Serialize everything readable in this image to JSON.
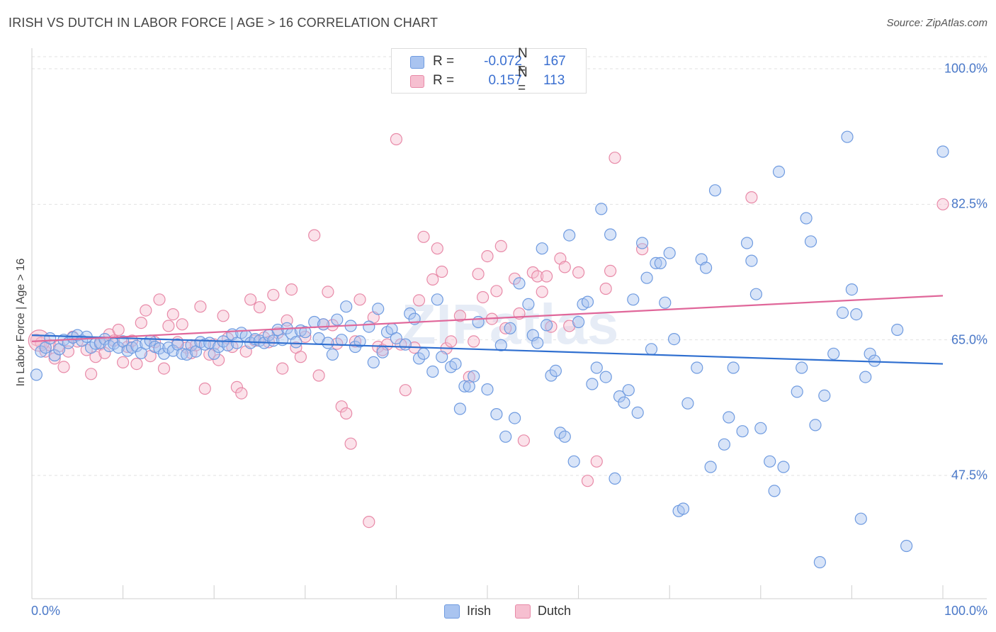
{
  "header": {
    "title": "IRISH VS DUTCH IN LABOR FORCE | AGE > 16 CORRELATION CHART",
    "source": "Source: ZipAtlas.com"
  },
  "watermark": "ZIPatlas",
  "stats": {
    "rows": [
      {
        "label": "R =",
        "r": "-0.072",
        "n_label": "N =",
        "n": "167",
        "color": "#a9c4f0",
        "border": "#6f9be0"
      },
      {
        "label": "R =",
        "r": "0.157",
        "n_label": "N =",
        "n": "113",
        "color": "#f6bfd0",
        "border": "#e88aa8"
      }
    ]
  },
  "legend": {
    "irish": "Irish",
    "dutch": "Dutch"
  },
  "colors": {
    "irish_fill": "#a9c4f0",
    "irish_stroke": "#6f9be0",
    "irish_line": "#2f6fd0",
    "dutch_fill": "#f6bfd0",
    "dutch_stroke": "#e88aa8",
    "dutch_line": "#e0679a",
    "tick_text": "#4a78c8"
  },
  "chart_data": {
    "type": "scatter",
    "title": "IRISH VS DUTCH IN LABOR FORCE | AGE > 16 CORRELATION CHART",
    "xlabel": "",
    "ylabel": "In Labor Force | Age > 16",
    "xlim": [
      0,
      100
    ],
    "ylim": [
      29.5,
      100
    ],
    "x_tick_labels": [
      "0.0%",
      "100.0%"
    ],
    "y_ticks": [
      47.5,
      65.0,
      82.5,
      100.0
    ],
    "y_tick_labels": [
      "47.5%",
      "65.0%",
      "82.5%",
      "100.0%"
    ],
    "grid": true,
    "legend_position": "bottom-center",
    "series": [
      {
        "name": "Irish",
        "r": -0.072,
        "n": 167,
        "trend": {
          "x": [
            0,
            100
          ],
          "y": [
            65.6,
            61.9
          ]
        },
        "points": [
          [
            0.5,
            60.5
          ],
          [
            1,
            63.5
          ],
          [
            1.5,
            64
          ],
          [
            2,
            65.2
          ],
          [
            2.5,
            63
          ],
          [
            3,
            63.8
          ],
          [
            3.5,
            65
          ],
          [
            4,
            64.6
          ],
          [
            4.5,
            65.3
          ],
          [
            5,
            65.6
          ],
          [
            5.5,
            64.9
          ],
          [
            6,
            65.4
          ],
          [
            6.5,
            64
          ],
          [
            7,
            64.5
          ],
          [
            7.5,
            64.6
          ],
          [
            8,
            65.1
          ],
          [
            8.5,
            64.2
          ],
          [
            9,
            64.5
          ],
          [
            9.5,
            64
          ],
          [
            10,
            64.8
          ],
          [
            10.5,
            63.6
          ],
          [
            11,
            64
          ],
          [
            11.5,
            64.2
          ],
          [
            12,
            63.3
          ],
          [
            12.5,
            64.5
          ],
          [
            13,
            64.9
          ],
          [
            13.5,
            64.1
          ],
          [
            14,
            63.9
          ],
          [
            14.5,
            63.2
          ],
          [
            15,
            64
          ],
          [
            15.5,
            63.6
          ],
          [
            16,
            64.4
          ],
          [
            16.5,
            63.2
          ],
          [
            17,
            63.1
          ],
          [
            17.5,
            64.3
          ],
          [
            18,
            63.5
          ],
          [
            18.5,
            64.7
          ],
          [
            19,
            64.4
          ],
          [
            19.5,
            64.6
          ],
          [
            20,
            63.2
          ],
          [
            20.5,
            64.1
          ],
          [
            21,
            64.8
          ],
          [
            21.5,
            64.3
          ],
          [
            22,
            65.7
          ],
          [
            22.5,
            64.6
          ],
          [
            23,
            65.9
          ],
          [
            23.5,
            65.5
          ],
          [
            24,
            64.6
          ],
          [
            24.5,
            65.1
          ],
          [
            25,
            64.9
          ],
          [
            25.5,
            64.6
          ],
          [
            26,
            65.6
          ],
          [
            26.5,
            64.9
          ],
          [
            27,
            66.3
          ],
          [
            27.5,
            65
          ],
          [
            28,
            66.5
          ],
          [
            28.5,
            65.8
          ],
          [
            29,
            64.7
          ],
          [
            29.5,
            66.2
          ],
          [
            30,
            66
          ],
          [
            31,
            67.3
          ],
          [
            31.5,
            65.2
          ],
          [
            32,
            67
          ],
          [
            32.5,
            64.6
          ],
          [
            33,
            63.1
          ],
          [
            33.5,
            67.6
          ],
          [
            34,
            65
          ],
          [
            34.5,
            69.3
          ],
          [
            35,
            66.8
          ],
          [
            35.5,
            64.1
          ],
          [
            36,
            64.8
          ],
          [
            37,
            66.7
          ],
          [
            37.5,
            62.1
          ],
          [
            38,
            69
          ],
          [
            38.5,
            63.4
          ],
          [
            39,
            66
          ],
          [
            39.5,
            66.4
          ],
          [
            40,
            65.2
          ],
          [
            41,
            64.4
          ],
          [
            41.5,
            68.4
          ],
          [
            42,
            67.7
          ],
          [
            42.5,
            62.6
          ],
          [
            43,
            63.2
          ],
          [
            44,
            60.9
          ],
          [
            44.5,
            70.2
          ],
          [
            45,
            62.8
          ],
          [
            46,
            61.5
          ],
          [
            46.5,
            61.9
          ],
          [
            47,
            56.1
          ],
          [
            47.5,
            59
          ],
          [
            48,
            59
          ],
          [
            48.5,
            60.3
          ],
          [
            49,
            67.3
          ],
          [
            50,
            58.6
          ],
          [
            51,
            55.4
          ],
          [
            51.5,
            64.3
          ],
          [
            52,
            52.5
          ],
          [
            52.5,
            66.5
          ],
          [
            53,
            54.9
          ],
          [
            53.5,
            72.3
          ],
          [
            54.5,
            69.6
          ],
          [
            55,
            65.6
          ],
          [
            55.5,
            64.6
          ],
          [
            56,
            76.8
          ],
          [
            56.5,
            66.9
          ],
          [
            57,
            60.4
          ],
          [
            57.5,
            61
          ],
          [
            58,
            53
          ],
          [
            58.5,
            52.5
          ],
          [
            59,
            78.5
          ],
          [
            59.5,
            49.3
          ],
          [
            60,
            67.3
          ],
          [
            60.5,
            69.6
          ],
          [
            61,
            69.9
          ],
          [
            61.5,
            59.3
          ],
          [
            62,
            61.4
          ],
          [
            62.5,
            81.9
          ],
          [
            63,
            60.2
          ],
          [
            63.5,
            78.6
          ],
          [
            64,
            47.1
          ],
          [
            64.5,
            57.7
          ],
          [
            65,
            56.9
          ],
          [
            65.5,
            58.5
          ],
          [
            66,
            70.2
          ],
          [
            66.5,
            55.6
          ],
          [
            67,
            77.5
          ],
          [
            67.5,
            73
          ],
          [
            68,
            63.8
          ],
          [
            68.5,
            74.9
          ],
          [
            69,
            74.9
          ],
          [
            69.5,
            69.8
          ],
          [
            70,
            76.2
          ],
          [
            70.5,
            65.1
          ],
          [
            71,
            42.9
          ],
          [
            71.5,
            43.2
          ],
          [
            72,
            56.8
          ],
          [
            73,
            61.4
          ],
          [
            73.5,
            75.4
          ],
          [
            74,
            74.3
          ],
          [
            74.5,
            48.6
          ],
          [
            75,
            84.3
          ],
          [
            76,
            51.5
          ],
          [
            76.5,
            55
          ],
          [
            77,
            61.4
          ],
          [
            78,
            53.2
          ],
          [
            78.5,
            77.5
          ],
          [
            79,
            75.2
          ],
          [
            79.5,
            70.9
          ],
          [
            80,
            53.6
          ],
          [
            81,
            49.3
          ],
          [
            81.5,
            45.5
          ],
          [
            82,
            86.7
          ],
          [
            82.5,
            48.6
          ],
          [
            84,
            58.3
          ],
          [
            84.5,
            61.4
          ],
          [
            85,
            80.7
          ],
          [
            85.5,
            77.7
          ],
          [
            86,
            54
          ],
          [
            86.5,
            36.3
          ],
          [
            87,
            57.8
          ],
          [
            88,
            63.2
          ],
          [
            89,
            68.5
          ],
          [
            89.5,
            91.2
          ],
          [
            90,
            71.5
          ],
          [
            90.5,
            68.3
          ],
          [
            91,
            41.9
          ],
          [
            91.5,
            60.2
          ],
          [
            92,
            63.2
          ],
          [
            92.5,
            62.3
          ],
          [
            95,
            66.3
          ],
          [
            96,
            38.4
          ],
          [
            100,
            89.3
          ]
        ]
      },
      {
        "name": "Dutch",
        "r": 0.157,
        "n": 113,
        "trend": {
          "x": [
            0,
            100
          ],
          "y": [
            64.8,
            70.7
          ]
        },
        "points": [
          [
            0.5,
            65
          ],
          [
            1,
            64.6
          ],
          [
            1.5,
            63.5
          ],
          [
            2,
            64.3
          ],
          [
            2.5,
            62.6
          ],
          [
            3,
            64.2
          ],
          [
            3.5,
            61.5
          ],
          [
            4,
            63.5
          ],
          [
            4.5,
            65.4
          ],
          [
            5,
            64.8
          ],
          [
            6,
            63.7
          ],
          [
            6.5,
            60.6
          ],
          [
            7,
            62.8
          ],
          [
            7.5,
            64.4
          ],
          [
            8,
            63.3
          ],
          [
            8.5,
            65.7
          ],
          [
            9,
            64.9
          ],
          [
            9.5,
            66.3
          ],
          [
            10,
            62.1
          ],
          [
            10.5,
            64.1
          ],
          [
            11,
            64.9
          ],
          [
            11.5,
            61.9
          ],
          [
            12,
            67.2
          ],
          [
            12.5,
            68.8
          ],
          [
            13,
            62.9
          ],
          [
            13.5,
            64.7
          ],
          [
            14,
            70.2
          ],
          [
            14.5,
            61.3
          ],
          [
            15,
            66.8
          ],
          [
            15.5,
            68.3
          ],
          [
            16,
            64.7
          ],
          [
            16.5,
            67
          ],
          [
            17,
            64
          ],
          [
            17.5,
            63.3
          ],
          [
            18,
            64.3
          ],
          [
            18.5,
            69.3
          ],
          [
            19,
            58.7
          ],
          [
            19.5,
            63.1
          ],
          [
            20,
            64.4
          ],
          [
            20.5,
            62.4
          ],
          [
            21,
            68.1
          ],
          [
            21.5,
            65.2
          ],
          [
            22,
            64.1
          ],
          [
            22.5,
            58.9
          ],
          [
            23,
            58.1
          ],
          [
            23.5,
            63.5
          ],
          [
            24,
            70.2
          ],
          [
            24.5,
            64.9
          ],
          [
            25,
            69.2
          ],
          [
            25.5,
            65.3
          ],
          [
            26,
            64.7
          ],
          [
            26.5,
            70.8
          ],
          [
            27,
            65.9
          ],
          [
            27.5,
            61.3
          ],
          [
            28,
            67.5
          ],
          [
            28.5,
            71.5
          ],
          [
            29,
            64
          ],
          [
            29.5,
            62.8
          ],
          [
            30,
            65.4
          ],
          [
            31,
            78.5
          ],
          [
            31.5,
            60.4
          ],
          [
            32,
            67
          ],
          [
            32.5,
            71.2
          ],
          [
            33,
            66.9
          ],
          [
            33.5,
            64.5
          ],
          [
            34,
            56.4
          ],
          [
            34.5,
            55.5
          ],
          [
            35,
            51.6
          ],
          [
            35.5,
            64.8
          ],
          [
            36,
            70.2
          ],
          [
            37,
            41.5
          ],
          [
            37.5,
            67.9
          ],
          [
            38,
            64.1
          ],
          [
            38.5,
            63.7
          ],
          [
            39,
            64.4
          ],
          [
            40,
            90.9
          ],
          [
            40.5,
            64.4
          ],
          [
            41,
            58.5
          ],
          [
            42,
            64
          ],
          [
            42.5,
            70.1
          ],
          [
            43,
            78.3
          ],
          [
            44,
            72.8
          ],
          [
            44.5,
            76.8
          ],
          [
            45,
            73.8
          ],
          [
            45.5,
            63.9
          ],
          [
            46,
            64.8
          ],
          [
            47,
            68.1
          ],
          [
            48,
            60.2
          ],
          [
            48.5,
            64.8
          ],
          [
            49,
            73.5
          ],
          [
            49.5,
            70.5
          ],
          [
            50,
            75.8
          ],
          [
            50.5,
            67.7
          ],
          [
            51,
            71.3
          ],
          [
            51.5,
            77.1
          ],
          [
            52,
            66.5
          ],
          [
            53,
            72.9
          ],
          [
            53.5,
            68.4
          ],
          [
            54,
            52
          ],
          [
            55,
            73.7
          ],
          [
            55.5,
            73.2
          ],
          [
            56,
            71.2
          ],
          [
            56.5,
            73.2
          ],
          [
            57,
            66.7
          ],
          [
            58,
            75.5
          ],
          [
            58.5,
            74.4
          ],
          [
            59,
            66.8
          ],
          [
            60,
            73.7
          ],
          [
            61,
            46.8
          ],
          [
            62,
            49.3
          ],
          [
            63,
            71.6
          ],
          [
            63.5,
            73.9
          ],
          [
            64,
            88.5
          ],
          [
            67,
            76.7
          ],
          [
            79,
            83.4
          ],
          [
            100,
            82.5
          ]
        ]
      }
    ]
  }
}
